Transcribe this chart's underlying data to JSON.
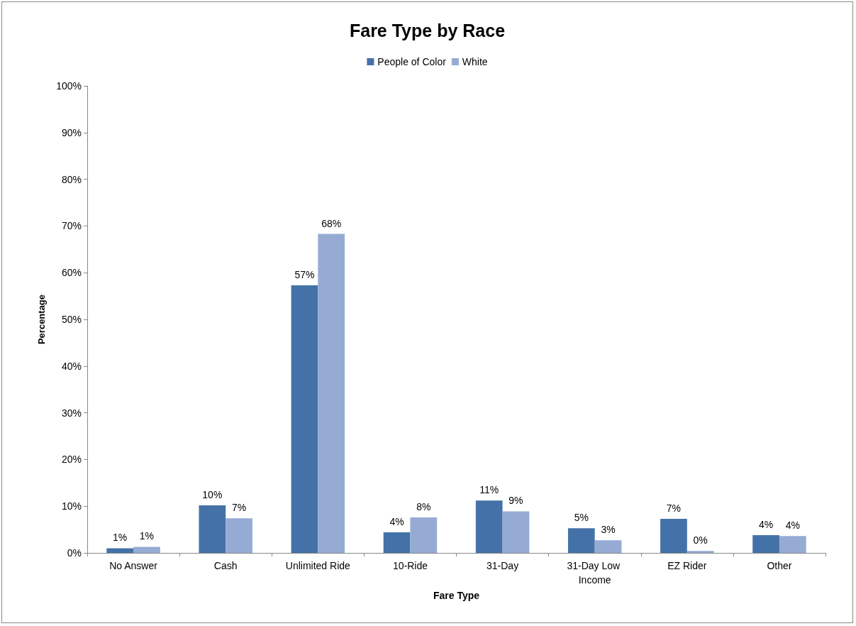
{
  "chart_data": {
    "type": "bar",
    "title": "Fare Type by Race",
    "xlabel": "Fare Type",
    "ylabel": "Percentage",
    "categories": [
      "No Answer",
      "Cash",
      "Unlimited Ride",
      "10-Ride",
      "31-Day",
      "31-Day Low Income",
      "EZ Rider",
      "Other"
    ],
    "series": [
      {
        "name": "People of Color",
        "color": "#4472a8",
        "values": [
          1.0,
          10.2,
          57.3,
          4.4,
          11.2,
          5.3,
          7.3,
          3.8
        ],
        "value_labels": [
          "1%",
          "10%",
          "57%",
          "4%",
          "11%",
          "5%",
          "7%",
          "4%"
        ]
      },
      {
        "name": "White",
        "color": "#95abd3",
        "values": [
          1.3,
          7.4,
          68.3,
          7.6,
          8.9,
          2.7,
          0.4,
          3.6
        ],
        "value_labels": [
          "1%",
          "7%",
          "68%",
          "8%",
          "9%",
          "3%",
          "0%",
          "4%"
        ]
      }
    ],
    "ylim": [
      0,
      100
    ],
    "yticks": [
      {
        "value": 0,
        "label": "0%"
      },
      {
        "value": 10,
        "label": "10%"
      },
      {
        "value": 20,
        "label": "20%"
      },
      {
        "value": 30,
        "label": "30%"
      },
      {
        "value": 40,
        "label": "40%"
      },
      {
        "value": 50,
        "label": "50%"
      },
      {
        "value": 60,
        "label": "60%"
      },
      {
        "value": 70,
        "label": "70%"
      },
      {
        "value": 80,
        "label": "80%"
      },
      {
        "value": 90,
        "label": "90%"
      },
      {
        "value": 100,
        "label": "100%"
      }
    ],
    "grid": false,
    "legend": "top"
  }
}
